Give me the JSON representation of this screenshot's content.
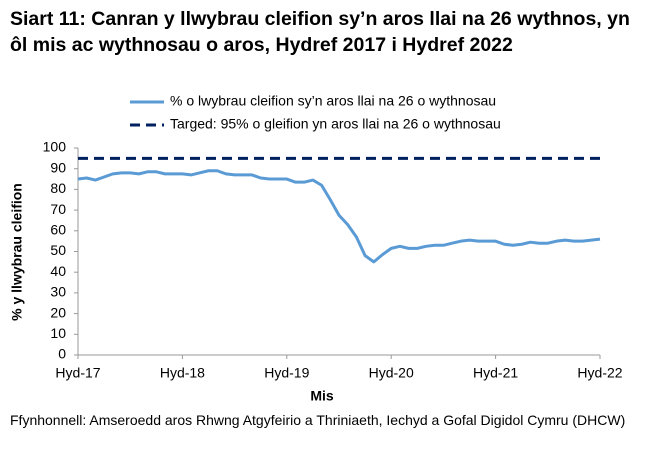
{
  "chart_data": {
    "type": "line",
    "title": "Siart 11: Canran y llwybrau cleifion sy’n aros llai na 26 wythnos, yn ôl mis ac wythnosau o aros, Hydref 2017 i Hydref 2022",
    "source": "Ffynhonnell: Amseroedd aros Rhwng Atgyfeirio a Thriniaeth, Iechyd a Gofal Digidol Cymru (DHCW)",
    "x_label": "Mis",
    "y_label": "% y llwybrau cleifion",
    "categories": [
      "Hyd-17",
      null,
      null,
      null,
      null,
      null,
      null,
      null,
      null,
      null,
      null,
      null,
      "Hyd-18",
      null,
      null,
      null,
      null,
      null,
      null,
      null,
      null,
      null,
      null,
      null,
      "Hyd-19",
      null,
      null,
      null,
      null,
      null,
      null,
      null,
      null,
      null,
      null,
      null,
      "Hyd-20",
      null,
      null,
      null,
      null,
      null,
      null,
      null,
      null,
      null,
      null,
      null,
      "Hyd-21",
      null,
      null,
      null,
      null,
      null,
      null,
      null,
      null,
      null,
      null,
      null,
      "Hyd-22"
    ],
    "series": [
      {
        "name": "% o lwybrau cleifion sy’n aros llai na 26 o wythnosau",
        "color": "#5b9bd5",
        "values": [
          85,
          85.5,
          84.5,
          86,
          87.5,
          88,
          88,
          87.5,
          88.5,
          88.5,
          87.5,
          87.5,
          87.5,
          87,
          88,
          89,
          89,
          87.5,
          87,
          87,
          87,
          85.5,
          85,
          85,
          85,
          83.5,
          83.5,
          84.5,
          82,
          75,
          67.5,
          63,
          57,
          48,
          45,
          48.5,
          51.5,
          52.5,
          51.5,
          51.5,
          52.5,
          53,
          53,
          54,
          55,
          55.5,
          55,
          55,
          55,
          53.5,
          53,
          53.5,
          54.5,
          54,
          54,
          55,
          55.5,
          55,
          55,
          55.5,
          56
        ]
      }
    ],
    "target": {
      "name": "Targed: 95% o gleifion yn aros llai na 26 o wythnosau",
      "value": 95,
      "color": "#002060"
    },
    "ylim": [
      0,
      100
    ],
    "yticks": [
      0,
      10,
      20,
      30,
      40,
      50,
      60,
      70,
      80,
      90,
      100
    ]
  }
}
